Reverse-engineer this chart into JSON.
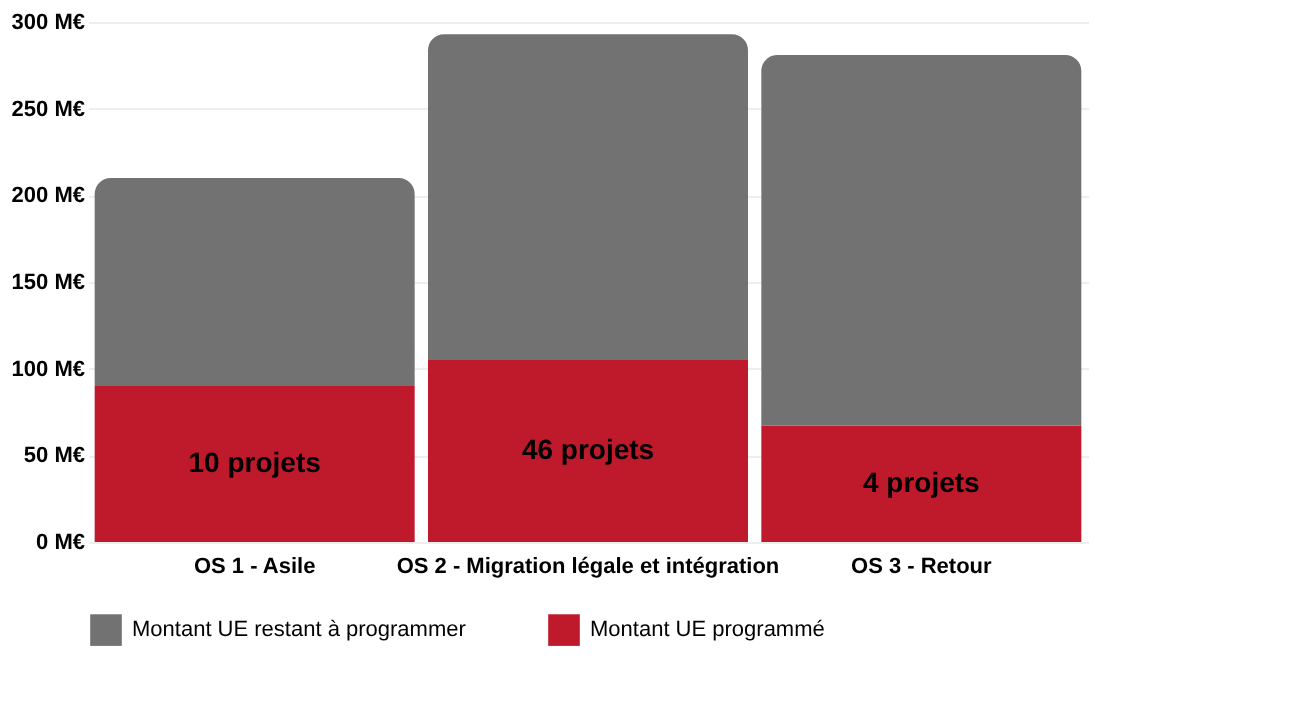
{
  "chart_data": {
    "type": "bar",
    "stacked": true,
    "categories": [
      "OS 1 - Asile",
      "OS 2 - Migration légale et intégration",
      "OS 3 - Retour"
    ],
    "series": [
      {
        "name": "Montant UE programmé",
        "color": "#be1a2c",
        "values": [
          90,
          105,
          67
        ]
      },
      {
        "name": "Montant UE restant à programmer",
        "color": "#727272",
        "values": [
          120,
          188,
          214
        ]
      }
    ],
    "annotations": [
      "10 projets",
      "46 projets",
      "4 projets"
    ],
    "ylim": [
      0,
      300
    ],
    "yticks": [
      {
        "value": 0,
        "label": "0 M€"
      },
      {
        "value": 50,
        "label": "50 M€"
      },
      {
        "value": 100,
        "label": "100 M€"
      },
      {
        "value": 150,
        "label": "150 M€"
      },
      {
        "value": 200,
        "label": "200 M€"
      },
      {
        "value": 250,
        "label": "250 M€"
      },
      {
        "value": 300,
        "label": "300 M€"
      }
    ],
    "grid": "y",
    "legend": "bottom"
  }
}
